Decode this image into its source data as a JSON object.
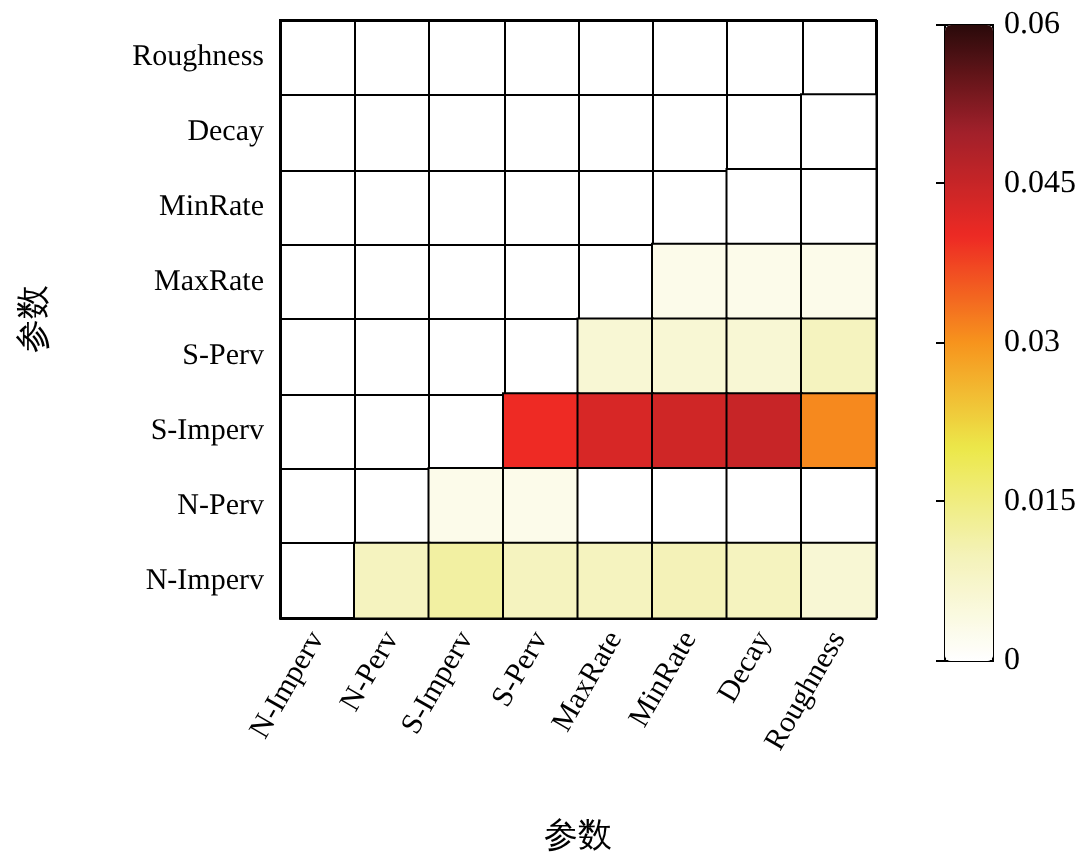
{
  "chart_data": {
    "type": "heatmap",
    "xlabel": "参数",
    "ylabel": "参数",
    "categories": [
      "N-Imperv",
      "N-Perv",
      "S-Imperv",
      "S-Perv",
      "MaxRate",
      "MinRate",
      "Decay",
      "Roughness"
    ],
    "y_categories": [
      "Roughness",
      "Decay",
      "MinRate",
      "MaxRate",
      "S-Perv",
      "S-Imperv",
      "N-Perv",
      "N-Imperv"
    ],
    "cells": [
      [
        null,
        null,
        null,
        null,
        null,
        null,
        null,
        null
      ],
      [
        null,
        null,
        null,
        null,
        null,
        null,
        null,
        0
      ],
      [
        null,
        null,
        null,
        null,
        null,
        null,
        0,
        0
      ],
      [
        null,
        null,
        null,
        null,
        null,
        0.003,
        0.003,
        0.003
      ],
      [
        null,
        null,
        null,
        null,
        0.006,
        0.006,
        0.006,
        0.009
      ],
      [
        null,
        null,
        null,
        0.04,
        0.043,
        0.044,
        0.045,
        0.031
      ],
      [
        null,
        null,
        0.003,
        0.003,
        0,
        0,
        0,
        0
      ],
      [
        null,
        0.009,
        0.012,
        0.009,
        0.009,
        0.01,
        0.009,
        0.006
      ]
    ],
    "clim": [
      0,
      0.06
    ],
    "cticks": [
      0,
      0.015,
      0.03,
      0.045,
      0.06
    ]
  }
}
